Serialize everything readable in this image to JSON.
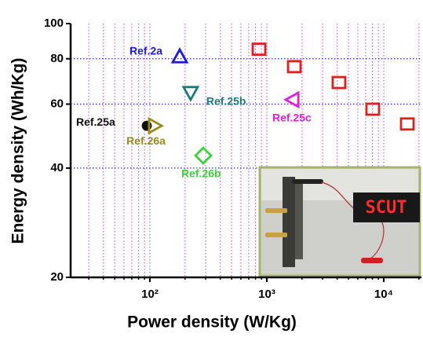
{
  "chart_data": {
    "type": "scatter",
    "x_label": "Power density (W/Kg)",
    "y_label": "Energy density (Wh/Kg)",
    "xscale": "log",
    "yscale": "log",
    "xlim": [
      21,
      21000
    ],
    "ylim": [
      20,
      100
    ],
    "xticks": [
      {
        "value": 100,
        "label": "10²"
      },
      {
        "value": 1000,
        "label": "10³"
      },
      {
        "value": 10000,
        "label": "10⁴"
      }
    ],
    "yticks": [
      20,
      40,
      60,
      80,
      100
    ],
    "grid": true,
    "inset_label": "SCUT",
    "series": [
      {
        "color": "#e0201c",
        "marker": "square",
        "x": [
          857,
          1718,
          4140,
          8050,
          15900
        ],
        "values": [
          85,
          76.1,
          68.8,
          58.1,
          52.9
        ]
      },
      {
        "name": "Ref.2a",
        "color": "#1a1adc",
        "marker": "triangle-up",
        "x": [
          180
        ],
        "values": [
          81.1
        ]
      },
      {
        "name": "Ref.25b",
        "color": "#1a7a7a",
        "marker": "triangle-down",
        "x": [
          223
        ],
        "values": [
          64.5
        ]
      },
      {
        "name": "Ref.25c",
        "color": "#e020d8",
        "marker": "triangle-left",
        "x": [
          1665
        ],
        "values": [
          61.7
        ]
      },
      {
        "name": "Ref.25a",
        "color": "#111111",
        "marker": "circle",
        "x": [
          94
        ],
        "values": [
          52.3
        ]
      },
      {
        "name": "Ref.26a",
        "color": "#9a8a1c",
        "marker": "triangle-right",
        "x": [
          110
        ],
        "values": [
          52.3
        ]
      },
      {
        "name": "Ref.26b",
        "color": "#3cd23c",
        "marker": "diamond",
        "x": [
          286
        ],
        "values": [
          43.3
        ]
      }
    ]
  }
}
